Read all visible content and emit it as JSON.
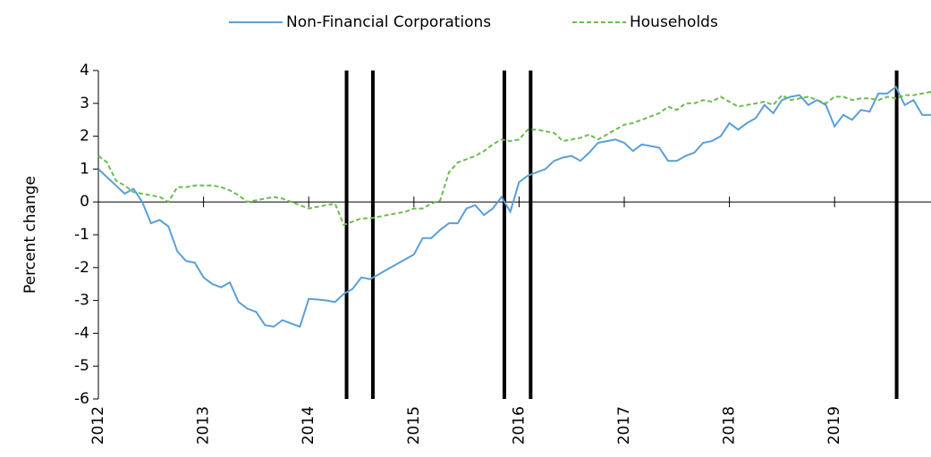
{
  "chart_data": {
    "type": "line",
    "y_label": "Percent change",
    "categories": [
      "2012",
      null,
      null,
      null,
      null,
      null,
      null,
      null,
      null,
      null,
      null,
      null,
      "2013",
      null,
      null,
      null,
      null,
      null,
      null,
      null,
      null,
      null,
      null,
      null,
      "2014",
      null,
      null,
      null,
      null,
      null,
      null,
      null,
      null,
      null,
      null,
      null,
      "2015",
      null,
      null,
      null,
      null,
      null,
      null,
      null,
      null,
      null,
      null,
      null,
      "2016",
      null,
      null,
      null,
      null,
      null,
      null,
      null,
      null,
      null,
      null,
      null,
      "2017",
      null,
      null,
      null,
      null,
      null,
      null,
      null,
      null,
      null,
      null,
      null,
      "2018",
      null,
      null,
      null,
      null,
      null,
      null,
      null,
      null,
      null,
      null,
      null,
      "2019",
      null,
      null,
      null,
      null,
      null,
      null,
      null,
      null,
      null,
      null,
      null
    ],
    "series": [
      {
        "name": "Non-Financial Corporations",
        "color": "#5a9fd6",
        "style": "solid",
        "values": [
          1.0,
          0.75,
          0.5,
          0.25,
          0.4,
          0.0,
          -0.65,
          -0.55,
          -0.75,
          -1.5,
          -1.8,
          -1.85,
          -2.3,
          -2.5,
          -2.6,
          -2.45,
          -3.05,
          -3.25,
          -3.35,
          -3.75,
          -3.8,
          -3.6,
          -3.7,
          -3.8,
          -2.95,
          -2.97,
          -3.0,
          -3.05,
          -2.8,
          -2.65,
          -2.3,
          -2.35,
          -2.2,
          -2.05,
          -1.9,
          -1.75,
          -1.6,
          -1.1,
          -1.1,
          -0.85,
          -0.65,
          -0.65,
          -0.2,
          -0.1,
          -0.4,
          -0.2,
          0.15,
          -0.3,
          0.6,
          0.8,
          0.9,
          1.0,
          1.25,
          1.35,
          1.4,
          1.25,
          1.5,
          1.8,
          1.85,
          1.9,
          1.8,
          1.55,
          1.75,
          1.7,
          1.65,
          1.25,
          1.25,
          1.4,
          1.5,
          1.8,
          1.85,
          2.0,
          2.4,
          2.2,
          2.4,
          2.55,
          2.95,
          2.7,
          3.1,
          3.2,
          3.25,
          2.95,
          3.1,
          2.95,
          2.3,
          2.65,
          2.5,
          2.8,
          2.75,
          3.3,
          3.3,
          3.5,
          2.95,
          3.1,
          2.65,
          2.65
        ]
      },
      {
        "name": "Households",
        "color": "#6dbb4f",
        "style": "dashed",
        "values": [
          1.4,
          1.2,
          0.65,
          0.5,
          0.3,
          0.25,
          0.2,
          0.15,
          0.0,
          0.45,
          0.45,
          0.5,
          0.5,
          0.5,
          0.45,
          0.35,
          0.2,
          0.0,
          0.05,
          0.1,
          0.15,
          0.1,
          0.0,
          -0.1,
          -0.2,
          -0.15,
          -0.1,
          -0.05,
          -0.7,
          -0.6,
          -0.5,
          -0.5,
          -0.45,
          -0.4,
          -0.35,
          -0.3,
          -0.2,
          -0.2,
          -0.05,
          0.05,
          0.9,
          1.2,
          1.3,
          1.4,
          1.55,
          1.75,
          1.9,
          1.85,
          1.9,
          2.2,
          2.2,
          2.15,
          2.1,
          1.85,
          1.9,
          1.95,
          2.05,
          1.9,
          2.05,
          2.2,
          2.35,
          2.4,
          2.5,
          2.6,
          2.7,
          2.9,
          2.8,
          3.0,
          3.0,
          3.1,
          3.05,
          3.2,
          3.05,
          2.9,
          2.95,
          3.0,
          3.05,
          2.95,
          3.25,
          3.1,
          3.15,
          3.2,
          3.1,
          3.0,
          3.2,
          3.2,
          3.1,
          3.15,
          3.15,
          3.1,
          3.2,
          3.15,
          3.25,
          3.25,
          3.3,
          3.35
        ]
      }
    ],
    "event_lines": [
      2014.36,
      2014.61,
      2015.86,
      2016.11,
      2019.59
    ],
    "event_line_color": "#000000",
    "ylim": [
      -6,
      4
    ],
    "yticks": [
      -6,
      -5,
      -4,
      -3,
      -2,
      -1,
      0,
      1,
      2,
      3,
      4
    ],
    "legend": "top"
  }
}
